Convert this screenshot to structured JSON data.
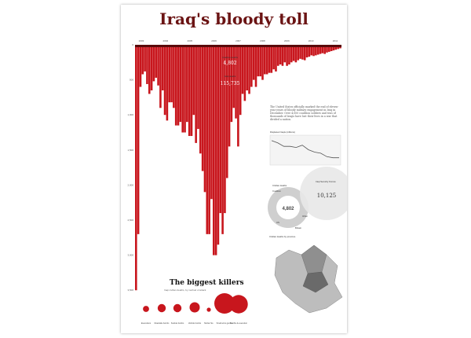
{
  "poster": {
    "title": "Iraq's bloody toll",
    "body_text": "The United States officially marked the end of eleven-year years of bloody military engagement in Iraq in December. Over 4,000 coalition soldiers and tens of thousands of Iraqis have lost their lives in a war that divided a nation.",
    "biggest_killers_title": "The biggest killers",
    "biggest_killers_subtitle": "Iraqi civilian deaths, by method of attack",
    "deaths_by_gender_label": "Civilian deaths",
    "map_title": "Civilian deaths by province"
  },
  "chart_data": [
    {
      "type": "bar",
      "title": "",
      "orientation": "downward",
      "x_ticks": [
        "2003",
        "2004",
        "2005",
        "2006",
        "2007",
        "2008",
        "2009",
        "2010",
        "2011"
      ],
      "y_ticks": [
        "0",
        "500",
        "1,000",
        "1,500",
        "2,000",
        "2,500",
        "3,000",
        "3,500"
      ],
      "ylim": [
        0,
        3800
      ],
      "annotations": [
        {
          "label": "Coalition deaths",
          "value": "4,802"
        },
        {
          "label": "Iraqi deaths",
          "value": "115,735"
        }
      ],
      "note": "monthly Iraqi civilian deaths, 2003-2011",
      "values": [
        3500,
        2700,
        600,
        420,
        380,
        560,
        700,
        650,
        520,
        470,
        580,
        900,
        650,
        1000,
        1080,
        820,
        820,
        900,
        1150,
        1150,
        1100,
        1250,
        1250,
        1100,
        1300,
        1300,
        1000,
        1400,
        1200,
        1550,
        1800,
        2100,
        2700,
        2700,
        2200,
        3000,
        3000,
        2850,
        2400,
        2700,
        2400,
        1900,
        1450,
        1100,
        900,
        1050,
        1450,
        1000,
        700,
        800,
        650,
        700,
        600,
        500,
        600,
        450,
        450,
        500,
        420,
        420,
        400,
        400,
        350,
        380,
        300,
        280,
        300,
        250,
        300,
        280,
        250,
        230,
        250,
        220,
        200,
        210,
        220,
        180,
        170,
        150,
        160,
        150,
        140,
        130,
        120,
        130,
        110,
        100,
        90,
        80,
        70,
        60,
        50
      ]
    },
    {
      "type": "line",
      "title": "Displaced Iraqis (millions)",
      "series": [
        {
          "values": [
            3.0,
            2.8,
            2.5,
            2.5,
            2.4,
            2.6,
            2.2,
            2.0,
            1.9,
            1.6,
            1.5,
            1.5
          ]
        }
      ]
    },
    {
      "type": "pie",
      "title": "Civilian deaths",
      "center_value": "4,802",
      "series": [
        {
          "name": "Coalition",
          "value": 4802
        },
        {
          "name": "Iraqi Security Forces",
          "value": 10125
        }
      ],
      "labels": [
        "US",
        "Britain",
        "Other",
        "10,125"
      ]
    },
    {
      "type": "bubble",
      "title": "The biggest killers",
      "categories": [
        "Executions",
        "Roadside bombs",
        "Suicide bombs",
        "Vehicle bombs",
        "Mortar fire",
        "Small arms gunfire",
        "Gunfire & execution"
      ],
      "values": [
        3,
        4,
        4,
        5,
        2,
        10,
        9
      ]
    }
  ]
}
